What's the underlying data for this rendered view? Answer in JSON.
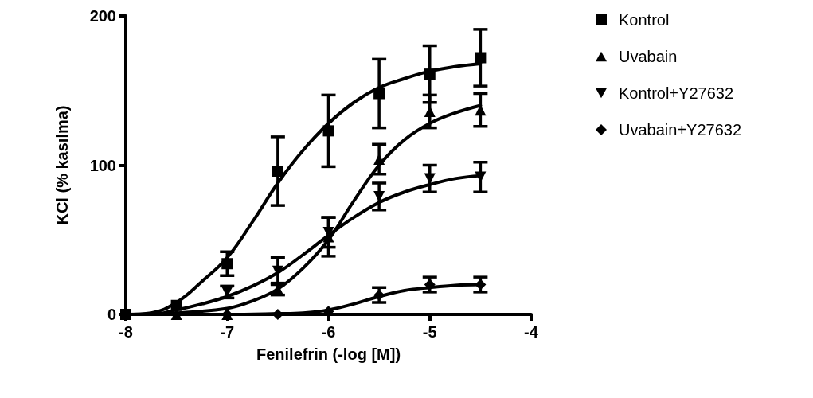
{
  "chart_data": {
    "type": "scatter",
    "xlabel": "Fenilefrin (-log [M])",
    "ylabel": "KCl (% kasılma)",
    "x": [
      -8,
      -7.5,
      -7,
      -6.5,
      -6,
      -5.5,
      -5,
      -4.5
    ],
    "xlim": [
      -8,
      -4
    ],
    "xticks": [
      -8,
      -7,
      -6,
      -5,
      -4
    ],
    "ylim": [
      0,
      200
    ],
    "yticks": [
      0,
      100,
      200
    ],
    "grid": false,
    "legend": "top right",
    "series": [
      {
        "name": "Kontrol",
        "color": "#000000",
        "marker": "square",
        "values": [
          0,
          6,
          34,
          96,
          123,
          148,
          161,
          172
        ],
        "errors": [
          null,
          null,
          8,
          23,
          24,
          23,
          19,
          19
        ]
      },
      {
        "name": "Uvabain",
        "color": "#000000",
        "marker": "triangle",
        "values": [
          null,
          0,
          0,
          17,
          52,
          104,
          136,
          137
        ],
        "errors": [
          null,
          null,
          null,
          4,
          13,
          10,
          11,
          11
        ]
      },
      {
        "name": "Kontrol+Y27632",
        "color": "#000000",
        "marker": "triangle-down",
        "values": [
          null,
          null,
          15,
          29,
          55,
          79,
          91,
          92
        ],
        "errors": [
          null,
          null,
          4,
          9,
          10,
          9,
          9,
          10
        ]
      },
      {
        "name": "Uvabain+Y27632",
        "color": "#000000",
        "marker": "diamond",
        "values": [
          null,
          null,
          0,
          0,
          2,
          13,
          20,
          20
        ],
        "errors": [
          null,
          null,
          null,
          null,
          null,
          5,
          5,
          5
        ]
      },
      {
        "type": "line",
        "color": "#000000",
        "marker": "none",
        "x": [
          -8,
          -7.75,
          -7.5,
          -7.25,
          -7,
          -6.75,
          -6.5,
          -6.25,
          -6,
          -5.75,
          -5.5,
          -5.25,
          -5,
          -4.75,
          -4.5
        ],
        "values": [
          0,
          1,
          8,
          22,
          38,
          62,
          88,
          110,
          128,
          142,
          152,
          158,
          163,
          166,
          168
        ]
      },
      {
        "type": "line",
        "color": "#000000",
        "marker": "none",
        "x": [
          -8,
          -7.5,
          -7,
          -6.75,
          -6.5,
          -6.25,
          -6,
          -5.75,
          -5.5,
          -5.25,
          -5,
          -4.75,
          -4.5
        ],
        "values": [
          0,
          1,
          4,
          9,
          17,
          31,
          50,
          76,
          100,
          117,
          128,
          135,
          140
        ]
      },
      {
        "type": "line",
        "color": "#000000",
        "marker": "none",
        "x": [
          -8,
          -7.75,
          -7.5,
          -7.25,
          -7,
          -6.75,
          -6.5,
          -6.25,
          -6,
          -5.75,
          -5.5,
          -5.25,
          -5,
          -4.75,
          -4.5
        ],
        "values": [
          0,
          0,
          3,
          7,
          12,
          19,
          28,
          40,
          53,
          65,
          75,
          82,
          87,
          91,
          93
        ]
      },
      {
        "type": "line",
        "color": "#000000",
        "marker": "none",
        "x": [
          -8,
          -7,
          -6.5,
          -6.25,
          -6,
          -5.75,
          -5.5,
          -5.25,
          -5,
          -4.75,
          -4.5
        ],
        "values": [
          0,
          0,
          0.5,
          1,
          3,
          7,
          12,
          16,
          18,
          19.5,
          20
        ]
      }
    ]
  }
}
